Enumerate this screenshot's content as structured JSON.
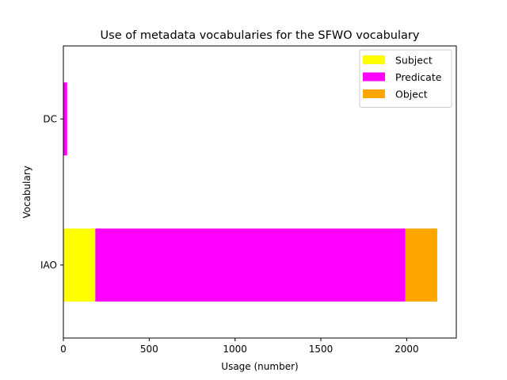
{
  "chart_data": {
    "type": "bar",
    "orientation": "horizontal",
    "stacked": true,
    "title": "Use of metadata vocabularies for the SFWO vocabulary",
    "xlabel": "Usage (number)",
    "ylabel": "Vocabulary",
    "categories": [
      "IAO",
      "DC"
    ],
    "series": [
      {
        "name": "Subject",
        "color": "#ffff00",
        "values": [
          186,
          0
        ]
      },
      {
        "name": "Predicate",
        "color": "#ff00ff",
        "values": [
          1806,
          22
        ]
      },
      {
        "name": "Object",
        "color": "#ffa500",
        "values": [
          186,
          0
        ]
      }
    ],
    "xlim": [
      0,
      2289
    ],
    "xticks": [
      0,
      500,
      1000,
      1500,
      2000
    ],
    "grid": false,
    "legend_position": "top-right"
  }
}
